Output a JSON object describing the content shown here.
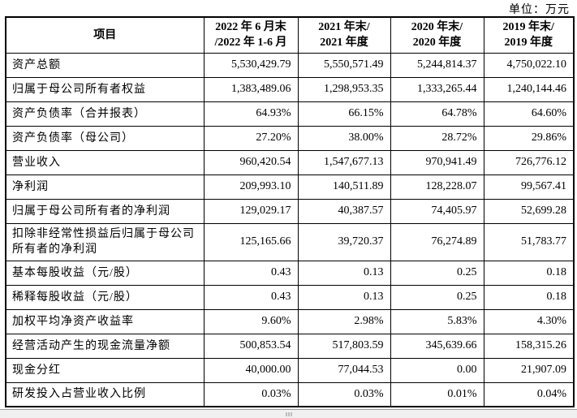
{
  "unit_label": "单位：万元",
  "table": {
    "header": {
      "item": "项目",
      "col1": {
        "line1": "2022 年 6 月末",
        "line2": "/2022 年 1-6 月"
      },
      "col2": {
        "line1": "2021 年末/",
        "line2": "2021 年度"
      },
      "col3": {
        "line1": "2020 年末/",
        "line2": "2020 年度"
      },
      "col4": {
        "line1": "2019 年末/",
        "line2": "2019 年度"
      }
    },
    "rows": [
      {
        "label": "资产总额",
        "values": [
          "5,530,429.79",
          "5,550,571.49",
          "5,244,814.37",
          "4,750,022.10"
        ]
      },
      {
        "label": "归属于母公司所有者权益",
        "values": [
          "1,383,489.06",
          "1,298,953.35",
          "1,333,265.44",
          "1,240,144.46"
        ]
      },
      {
        "label": "资产负债率（合并报表）",
        "values": [
          "64.93%",
          "66.15%",
          "64.78%",
          "64.60%"
        ]
      },
      {
        "label": "资产负债率（母公司）",
        "values": [
          "27.20%",
          "38.00%",
          "28.72%",
          "29.86%"
        ]
      },
      {
        "label": "营业收入",
        "values": [
          "960,420.54",
          "1,547,677.13",
          "970,941.49",
          "726,776.12"
        ]
      },
      {
        "label": "净利润",
        "values": [
          "209,993.10",
          "140,511.89",
          "128,228.07",
          "99,567.41"
        ]
      },
      {
        "label": "归属于母公司所有者的净利润",
        "values": [
          "129,029.17",
          "40,387.57",
          "74,405.97",
          "52,699.28"
        ]
      },
      {
        "label": "扣除非经常性损益后归属于母公司所有者的净利润",
        "values": [
          "125,165.66",
          "39,720.37",
          "76,274.89",
          "51,783.77"
        ]
      },
      {
        "label": "基本每股收益（元/股）",
        "values": [
          "0.43",
          "0.13",
          "0.25",
          "0.18"
        ]
      },
      {
        "label": "稀释每股收益（元/股）",
        "values": [
          "0.43",
          "0.13",
          "0.25",
          "0.18"
        ]
      },
      {
        "label": "加权平均净资产收益率",
        "values": [
          "9.60%",
          "2.98%",
          "5.83%",
          "4.30%"
        ]
      },
      {
        "label": "经营活动产生的现金流量净额",
        "values": [
          "500,853.54",
          "517,803.59",
          "345,639.66",
          "158,315.26"
        ]
      },
      {
        "label": "现金分红",
        "values": [
          "40,000.00",
          "77,044.53",
          "0.00",
          "21,907.09"
        ]
      },
      {
        "label": "研发投入占营业收入比例",
        "values": [
          "0.03%",
          "0.03%",
          "0.01%",
          "0.04%"
        ]
      }
    ]
  },
  "colors": {
    "text": "#000000",
    "border": "#000000",
    "background": "#ffffff",
    "scrollbar_strip": "#f0f0f0"
  }
}
